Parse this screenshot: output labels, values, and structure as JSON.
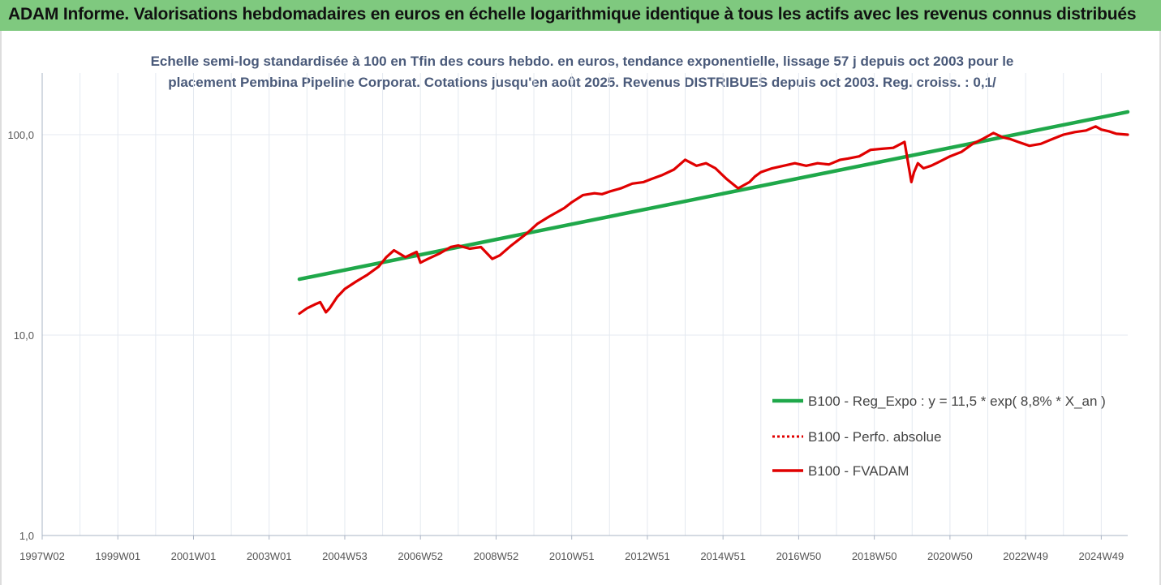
{
  "header": {
    "title": "ADAM Informe. Valorisations hebdomadaires en euros en échelle logarithmique identique à tous les actifs avec les revenus connus distribués"
  },
  "colors": {
    "header_bg": "#7fc97f",
    "trend": "#1fa84a",
    "perf": "#e00000",
    "grid": "#e4e9f0",
    "axis_text": "#555555"
  },
  "chart_data": {
    "type": "line",
    "title_line1": "Echelle semi-log standardisée à 100 en Tfin des cours hebdo. en euros, tendance exponentielle, lissage 57 j depuis oct 2003 pour le",
    "title_line2": "placement Pembina Pipeline Corporat. Cotations jusqu'en août 2025. Revenus DISTRIBUES depuis oct 2003. Reg. croiss. : 0,1/",
    "y_scale": "log",
    "ylim": [
      1,
      200
    ],
    "y_ticks": [
      {
        "value": 1,
        "label": "1,0"
      },
      {
        "value": 10,
        "label": "10,0"
      },
      {
        "value": 100,
        "label": "100,0"
      }
    ],
    "xlim": [
      1997.0,
      2025.7
    ],
    "x_ticks": [
      {
        "value": 1997.0,
        "label": "1997W02"
      },
      {
        "value": 1999.0,
        "label": "1999W01"
      },
      {
        "value": 2001.0,
        "label": "2001W01"
      },
      {
        "value": 2003.0,
        "label": "2003W01"
      },
      {
        "value": 2005.0,
        "label": "2004W53"
      },
      {
        "value": 2007.0,
        "label": "2006W52"
      },
      {
        "value": 2009.0,
        "label": "2008W52"
      },
      {
        "value": 2011.0,
        "label": "2010W51"
      },
      {
        "value": 2013.0,
        "label": "2012W51"
      },
      {
        "value": 2015.0,
        "label": "2014W51"
      },
      {
        "value": 2017.0,
        "label": "2016W50"
      },
      {
        "value": 2019.0,
        "label": "2018W50"
      },
      {
        "value": 2021.0,
        "label": "2020W50"
      },
      {
        "value": 2023.0,
        "label": "2022W49"
      },
      {
        "value": 2025.0,
        "label": "2024W49"
      }
    ],
    "legend": [
      {
        "label": "B100 - Reg_Expo : y = 11,5 * exp( 8,8% *  X_an )",
        "style": "solid-green"
      },
      {
        "label": "B100 - Perfo. absolue",
        "style": "dotted-red"
      },
      {
        "label": "B100 - FVADAM",
        "style": "solid-red"
      }
    ],
    "legend_position": "right",
    "series": [
      {
        "name": "B100 - Reg_Expo : y = 11,5 * exp( 8,8% *  X_an )",
        "x": [
          2003.8,
          2025.7
        ],
        "y": [
          19.0,
          130.0
        ]
      },
      {
        "name": "B100 - FVADAM",
        "x": [
          2003.8,
          2004.0,
          2004.2,
          2004.35,
          2004.5,
          2004.6,
          2004.8,
          2005.0,
          2005.3,
          2005.6,
          2005.9,
          2006.1,
          2006.3,
          2006.6,
          2006.9,
          2007.0,
          2007.2,
          2007.5,
          2007.8,
          2008.0,
          2008.3,
          2008.6,
          2008.9,
          2009.1,
          2009.4,
          2009.8,
          2010.1,
          2010.4,
          2010.8,
          2011.0,
          2011.3,
          2011.6,
          2011.8,
          2012.0,
          2012.3,
          2012.6,
          2012.9,
          2013.1,
          2013.4,
          2013.7,
          2014.0,
          2014.3,
          2014.55,
          2014.8,
          2015.1,
          2015.4,
          2015.7,
          2015.85,
          2016.0,
          2016.3,
          2016.6,
          2016.9,
          2017.2,
          2017.5,
          2017.8,
          2018.1,
          2018.3,
          2018.6,
          2018.9,
          2019.2,
          2019.5,
          2019.8,
          2019.98,
          2020.05,
          2020.15,
          2020.3,
          2020.5,
          2020.7,
          2021.0,
          2021.3,
          2021.6,
          2021.9,
          2022.15,
          2022.4,
          2022.6,
          2022.8,
          2023.1,
          2023.4,
          2023.7,
          2024.0,
          2024.3,
          2024.6,
          2024.85,
          2025.0,
          2025.2,
          2025.4,
          2025.7
        ],
        "y": [
          12.8,
          13.6,
          14.2,
          14.6,
          13.0,
          13.6,
          15.5,
          17.0,
          18.5,
          20.0,
          22.0,
          24.5,
          26.5,
          24.5,
          26.0,
          23.0,
          24.0,
          25.5,
          27.5,
          28.0,
          27.0,
          27.5,
          24.0,
          25.0,
          28.0,
          32.0,
          36.0,
          39.0,
          43.0,
          46.0,
          50.0,
          51.0,
          50.5,
          52.0,
          54.0,
          57.0,
          58.0,
          60.0,
          63.0,
          67.0,
          75.0,
          70.0,
          72.0,
          68.0,
          60.0,
          54.0,
          58.0,
          62.0,
          65.0,
          68.0,
          70.0,
          72.0,
          70.0,
          72.0,
          71.0,
          75.0,
          76.0,
          78.0,
          84.0,
          85.0,
          86.0,
          92.0,
          58.0,
          65.0,
          72.0,
          68.0,
          70.0,
          73.0,
          78.0,
          82.0,
          90.0,
          96.0,
          102.0,
          97.0,
          95.0,
          92.0,
          88.0,
          90.0,
          95.0,
          100.0,
          103.0,
          105.0,
          110.0,
          106.0,
          104.0,
          101.0,
          100.0
        ]
      }
    ]
  }
}
